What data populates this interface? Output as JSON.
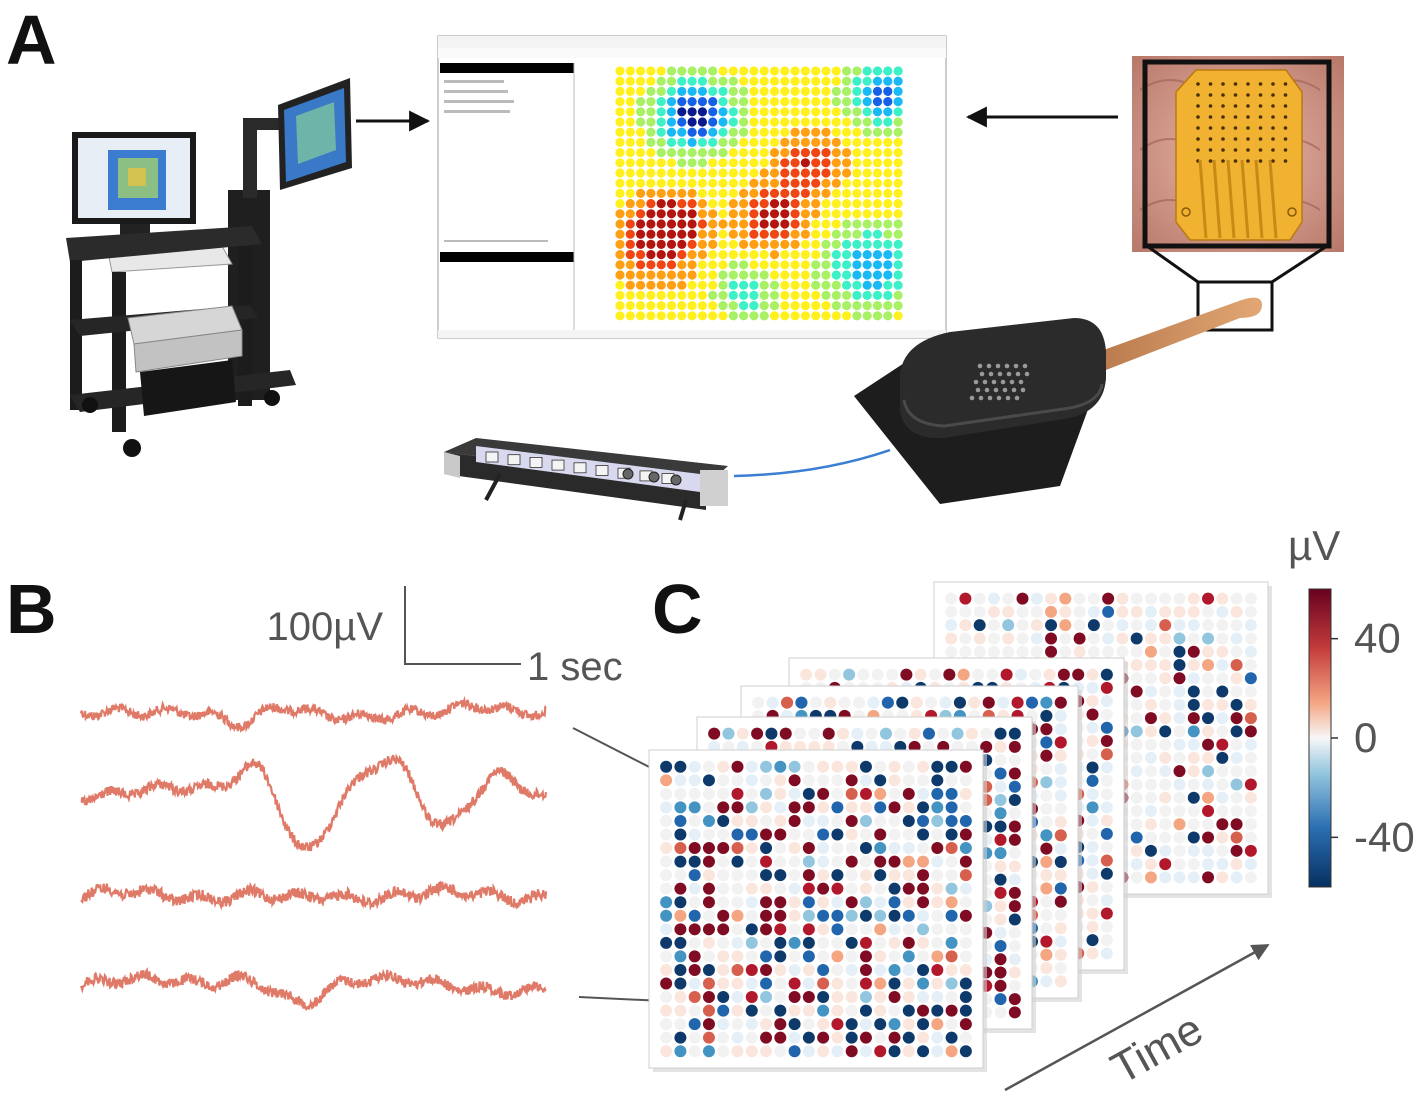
{
  "panels": {
    "a": {
      "letter": "A"
    },
    "b": {
      "letter": "B",
      "scale_amplitude": "100µV",
      "scale_time": "1 sec"
    },
    "c": {
      "letter": "C",
      "time_label": "Time"
    }
  },
  "colorbar": {
    "unit": "µV",
    "ticks": [
      {
        "value": 40,
        "label": "40"
      },
      {
        "value": 0,
        "label": "0"
      },
      {
        "value": -40,
        "label": "-40"
      }
    ],
    "range": [
      -60,
      60
    ],
    "colors": {
      "high": "#7f0c22",
      "mid": "#f5f5f5",
      "low": "#14406f"
    }
  },
  "software_window": {
    "heatmap_colors": [
      "#0a1a8c",
      "#1560e6",
      "#19b9f5",
      "#3cf0c8",
      "#a8f064",
      "#fff01e",
      "#ffa014",
      "#f04614",
      "#b4140f"
    ]
  },
  "traces": {
    "color": "#e07a68",
    "count": 4
  },
  "frames": {
    "count": 5
  },
  "icons": {
    "cart": "recording-cart-icon",
    "electrode": "ecog-electrode-array-icon",
    "headstage": "headstage-icon",
    "amplifier": "amplifier-rack-icon"
  }
}
